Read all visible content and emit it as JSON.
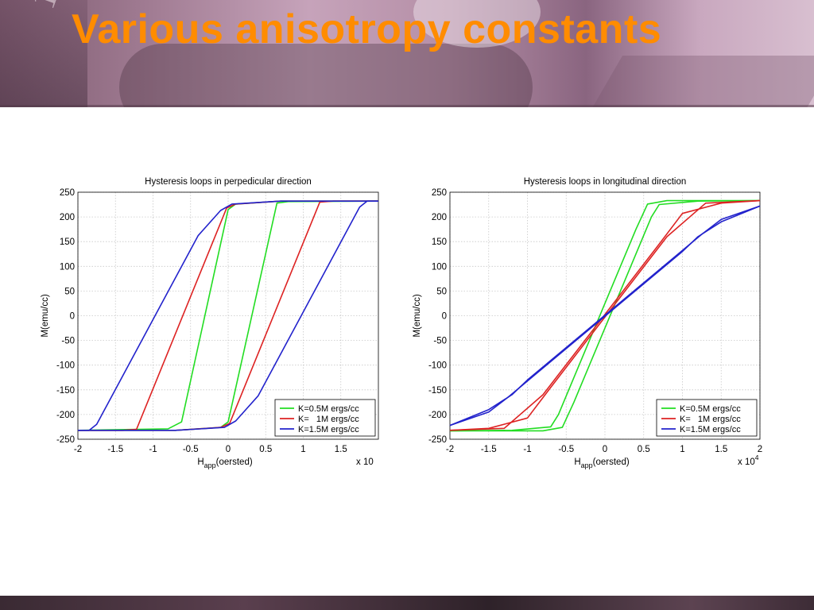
{
  "slide": {
    "title": "Various anisotropy constants"
  },
  "chart_data": [
    {
      "type": "line",
      "title": "Hysteresis loops in perpedicular direction",
      "xlabel": "H",
      "xlabel_sub": "app",
      "xlabel_rest": "(oersted)",
      "ylabel": "M(emu/cc)",
      "x_multiplier": "x 10",
      "x_multiplier_exp": "",
      "xlim": [
        -2,
        2
      ],
      "ylim": [
        -250,
        250
      ],
      "x_ticks": [
        "-2",
        "-1.5",
        "-1",
        "-0.5",
        "0",
        "0.5",
        "1",
        "1.5"
      ],
      "y_ticks": [
        "250",
        "200",
        "150",
        "100",
        "50",
        "0",
        "-50",
        "-100",
        "-150",
        "-200",
        "-250"
      ],
      "grid": true,
      "legend_position": "bottom-right",
      "series": [
        {
          "name": "K=0.5M ergs/cc",
          "color": "#22dd22",
          "descending": [
            [
              2,
              232
            ],
            [
              0.7,
              232
            ],
            [
              0.1,
              226
            ],
            [
              0.0,
              215
            ],
            [
              -0.62,
              -215
            ],
            [
              -0.8,
              -229
            ],
            [
              -2,
              -232
            ]
          ],
          "ascending": [
            [
              -2,
              -232
            ],
            [
              -0.7,
              -232
            ],
            [
              -0.1,
              -226
            ],
            [
              0.0,
              -215
            ],
            [
              0.65,
              228
            ],
            [
              0.8,
              231
            ],
            [
              2,
              232
            ]
          ]
        },
        {
          "name": "K=   1M ergs/cc",
          "color": "#dd2222",
          "descending": [
            [
              2,
              232
            ],
            [
              0.7,
              232
            ],
            [
              0.1,
              226
            ],
            [
              -0.02,
              218
            ],
            [
              -1.22,
              -230
            ],
            [
              -1.4,
              -232
            ],
            [
              -2,
              -232
            ]
          ],
          "ascending": [
            [
              -2,
              -232
            ],
            [
              -0.7,
              -232
            ],
            [
              -0.1,
              -226
            ],
            [
              0.02,
              -218
            ],
            [
              1.22,
              230
            ],
            [
              1.4,
              232
            ],
            [
              2,
              232
            ]
          ]
        },
        {
          "name": "K=1.5M ergs/cc",
          "color": "#2222cc",
          "descending": [
            [
              2,
              232
            ],
            [
              0.7,
              232
            ],
            [
              0.05,
              226
            ],
            [
              -0.1,
              213
            ],
            [
              -0.4,
              162
            ],
            [
              -1.75,
              -220
            ],
            [
              -1.85,
              -232
            ],
            [
              -2,
              -232
            ]
          ],
          "ascending": [
            [
              -2,
              -232
            ],
            [
              -0.7,
              -232
            ],
            [
              -0.05,
              -226
            ],
            [
              0.1,
              -213
            ],
            [
              0.4,
              -162
            ],
            [
              1.75,
              220
            ],
            [
              1.85,
              232
            ],
            [
              2,
              232
            ]
          ]
        }
      ]
    },
    {
      "type": "line",
      "title": "Hysteresis loops in longitudinal direction",
      "xlabel": "H",
      "xlabel_sub": "app",
      "xlabel_rest": "(oersted)",
      "ylabel": "M(emu/cc)",
      "x_multiplier": "x 10",
      "x_multiplier_exp": "4",
      "xlim": [
        -2,
        2
      ],
      "ylim": [
        -250,
        250
      ],
      "x_ticks": [
        "-2",
        "-1.5",
        "-1",
        "-0.5",
        "0",
        "0.5",
        "1",
        "1.5",
        "2"
      ],
      "y_ticks": [
        "250",
        "200",
        "150",
        "100",
        "50",
        "0",
        "-50",
        "-100",
        "-150",
        "-200",
        "-250"
      ],
      "grid": true,
      "legend_position": "bottom-right",
      "series": [
        {
          "name": "K=0.5M ergs/cc",
          "color": "#22dd22",
          "descending": [
            [
              2,
              233
            ],
            [
              0.8,
              233
            ],
            [
              0.55,
              226
            ],
            [
              0.4,
              175
            ],
            [
              -0.6,
              -200
            ],
            [
              -0.7,
              -225
            ],
            [
              -1.2,
              -232
            ],
            [
              -2,
              -233
            ]
          ],
          "ascending": [
            [
              -2,
              -233
            ],
            [
              -0.8,
              -233
            ],
            [
              -0.55,
              -226
            ],
            [
              -0.4,
              -175
            ],
            [
              0.6,
              200
            ],
            [
              0.7,
              225
            ],
            [
              1.2,
              232
            ],
            [
              2,
              233
            ]
          ]
        },
        {
          "name": "K=   1M ergs/cc",
          "color": "#dd2222",
          "descending": [
            [
              2,
              233
            ],
            [
              1.3,
              228
            ],
            [
              0.8,
              160
            ],
            [
              -0.7,
              -145
            ],
            [
              -1.0,
              -207
            ],
            [
              -1.5,
              -228
            ],
            [
              -2,
              -232
            ]
          ],
          "ascending": [
            [
              -2,
              -232
            ],
            [
              -1.3,
              -228
            ],
            [
              -0.8,
              -160
            ],
            [
              0.7,
              145
            ],
            [
              1.0,
              207
            ],
            [
              1.5,
              228
            ],
            [
              2,
              233
            ]
          ]
        },
        {
          "name": "K=1.5M ergs/cc",
          "color": "#2222cc",
          "descending": [
            [
              2,
              222
            ],
            [
              1.5,
              195
            ],
            [
              1.25,
              165
            ],
            [
              -1.0,
              -130
            ],
            [
              -1.2,
              -160
            ],
            [
              -1.5,
              -190
            ],
            [
              -2,
              -222
            ]
          ],
          "ascending": [
            [
              -2,
              -222
            ],
            [
              -1.5,
              -195
            ],
            [
              -1.25,
              -165
            ],
            [
              1.0,
              130
            ],
            [
              1.2,
              160
            ],
            [
              1.5,
              190
            ],
            [
              2,
              222
            ]
          ]
        }
      ]
    }
  ]
}
